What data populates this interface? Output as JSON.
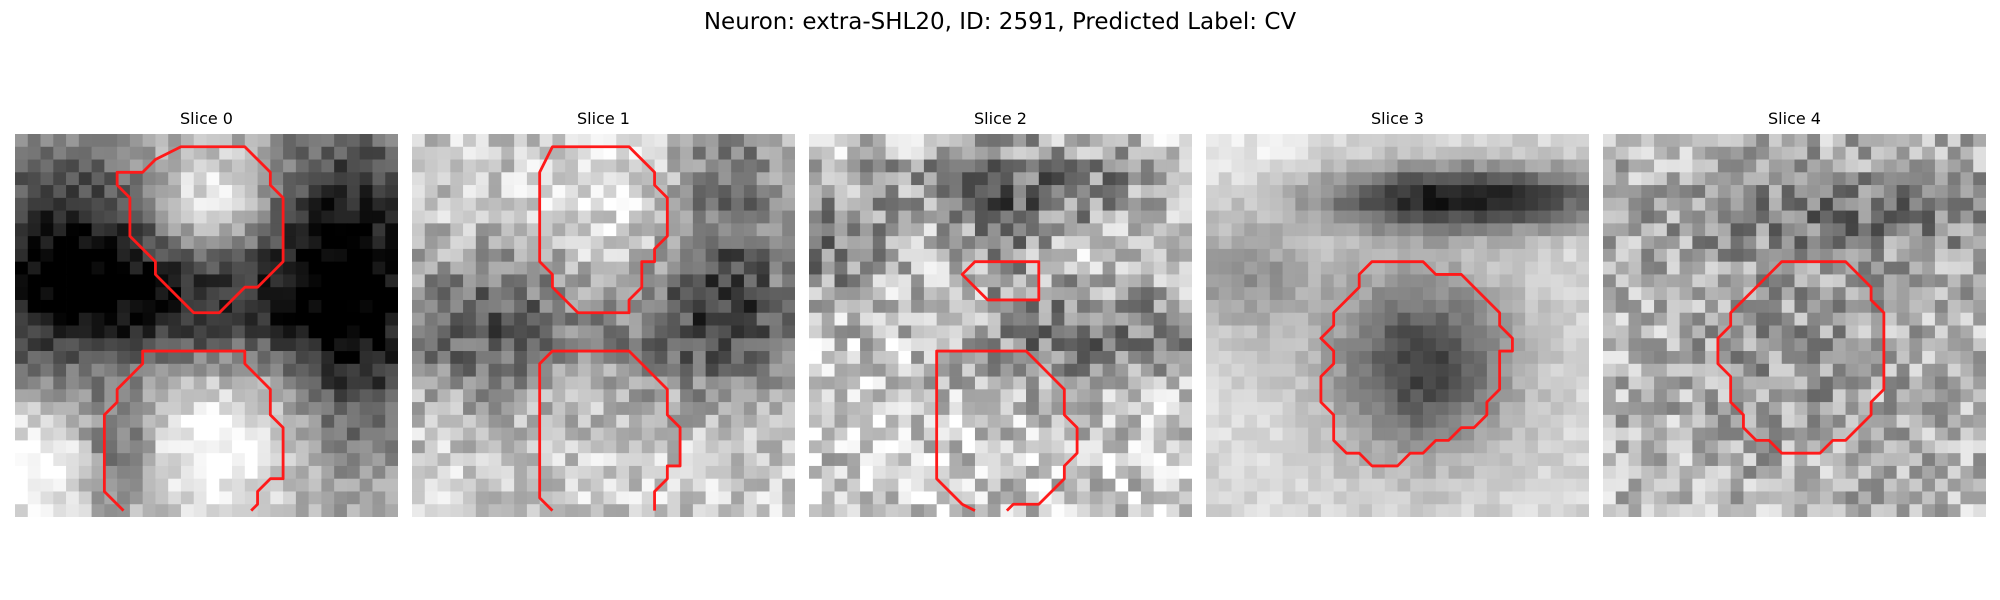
{
  "title": "Neuron: extra-SHL20, ID: 2591, Predicted Label: CV",
  "panels": [
    {
      "title": "Slice 0"
    },
    {
      "title": "Slice 1"
    },
    {
      "title": "Slice 2"
    },
    {
      "title": "Slice 3"
    },
    {
      "title": "Slice 4"
    }
  ],
  "colors": {
    "contour": "#ff1a1a",
    "background": "#ffffff"
  }
}
